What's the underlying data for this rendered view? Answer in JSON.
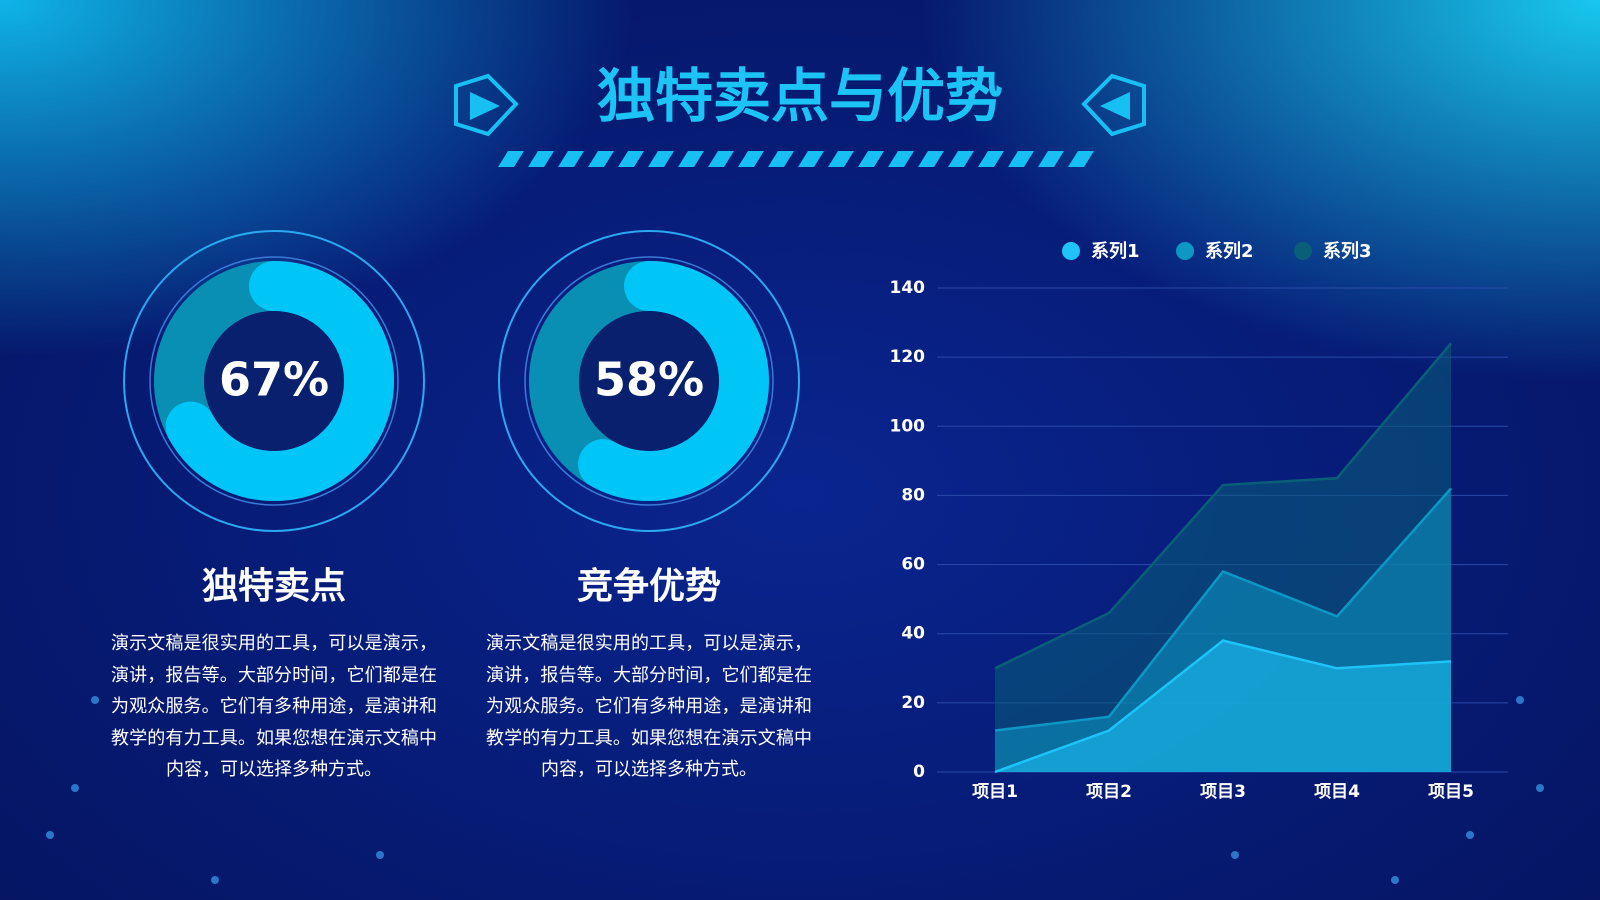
{
  "title": "独特卖点与优势",
  "cards": [
    {
      "heading": "独特卖点",
      "text": "演示文稿是很实用的工具，可以是演示，演讲，报告等。大部分时间，它们都是在为观众服务。它们有多种用途，是演讲和教学的有力工具。如果您想在演示文稿中内容，可以选择多种方式。"
    },
    {
      "heading": "竞争优势",
      "text": "演示文稿是很实用的工具，可以是演示，演讲，报告等。大部分时间，它们都是在为观众服务。它们有多种用途，是演讲和教学的有力工具。如果您想在演示文稿中内容，可以选择多种方式。"
    }
  ],
  "chart_data": [
    {
      "type": "donut",
      "values": [
        67
      ],
      "value_labels": [
        "67%"
      ],
      "ylim": [
        0,
        100
      ],
      "color": "#00c6f8",
      "track_color": "#0a8fb4"
    },
    {
      "type": "donut",
      "values": [
        58
      ],
      "value_labels": [
        "58%"
      ],
      "ylim": [
        0,
        100
      ],
      "color": "#00c6f8",
      "track_color": "#0a8fb4"
    },
    {
      "type": "area",
      "categories": [
        "项目1",
        "项目2",
        "项目3",
        "项目4",
        "项目5"
      ],
      "series": [
        {
          "name": "系列1",
          "color": "#1ec4f8",
          "values": [
            0,
            12,
            38,
            30,
            32
          ]
        },
        {
          "name": "系列2",
          "color": "#0c97c4",
          "values": [
            12,
            16,
            58,
            45,
            82
          ]
        },
        {
          "name": "系列3",
          "color": "#0a5f78",
          "values": [
            30,
            46,
            83,
            85,
            124
          ]
        }
      ],
      "ylim": [
        0,
        140
      ],
      "yticks": [
        0,
        20,
        40,
        60,
        80,
        100,
        120,
        140
      ],
      "grid": true,
      "legend": "top"
    }
  ]
}
